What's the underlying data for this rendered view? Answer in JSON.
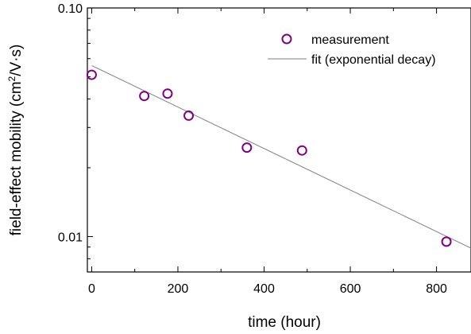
{
  "chart_data": {
    "type": "scatter",
    "xlabel": "time (hour)",
    "ylabel_main": "field-effect mobility (cm",
    "ylabel_sup": "2",
    "ylabel_tail": "/V·s)",
    "xlim": [
      -10,
      880
    ],
    "ylim": [
      0.007,
      0.1
    ],
    "y_scale": "log",
    "x_ticks": [
      0,
      200,
      400,
      600,
      800
    ],
    "x_tick_labels": [
      "0",
      "200",
      "400",
      "600",
      "800"
    ],
    "y_ticks": [
      0.01,
      0.1
    ],
    "y_tick_labels": [
      "0.01",
      "0.10"
    ],
    "grid": false,
    "legend_position": "top-right",
    "series": [
      {
        "name": "measurement",
        "kind": "markers",
        "color": "#800080",
        "x": [
          0,
          122,
          176,
          225,
          360,
          488,
          823
        ],
        "y": [
          0.051,
          0.0412,
          0.0422,
          0.0338,
          0.0245,
          0.0238,
          0.0095
        ]
      },
      {
        "name": "fit (exponential decay)",
        "kind": "line",
        "color": "#808080",
        "x": [
          0,
          880
        ],
        "y": [
          0.056,
          0.0089
        ]
      }
    ]
  }
}
